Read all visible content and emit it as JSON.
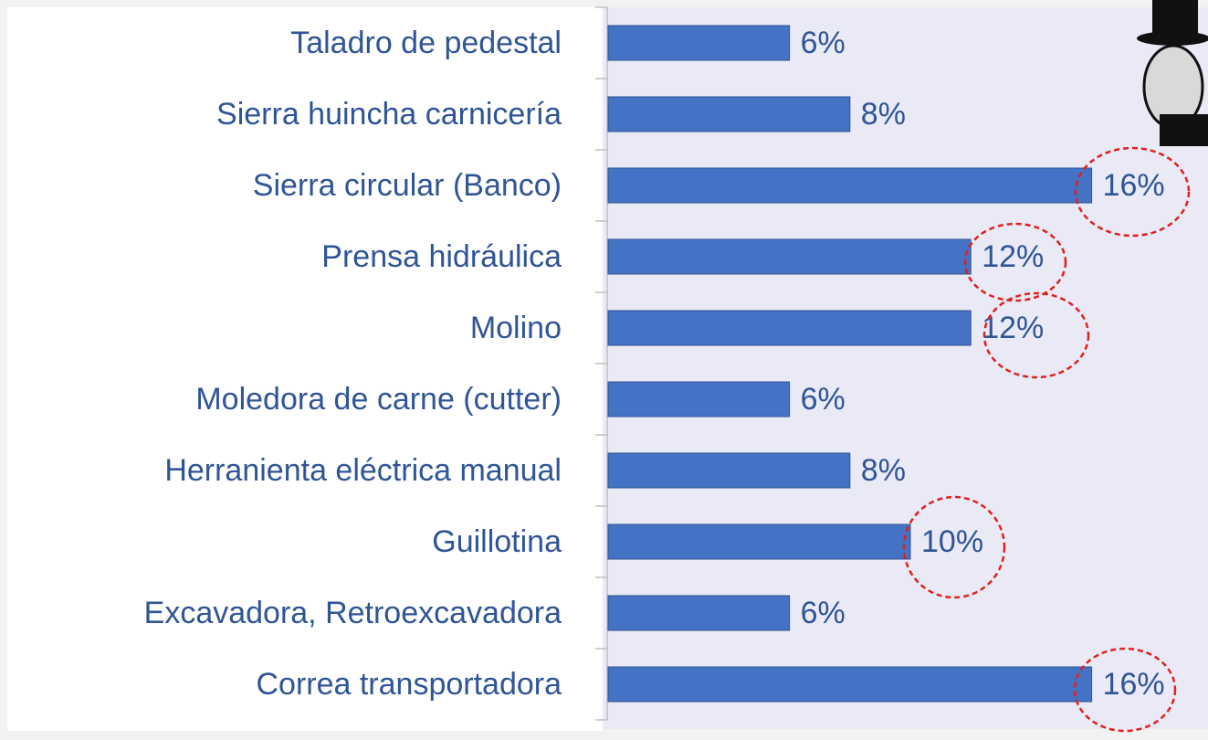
{
  "chart_data": {
    "type": "bar",
    "orientation": "horizontal",
    "categories": [
      "Taladro de pedestal",
      "Sierra huincha carnicería",
      "Sierra circular (Banco)",
      "Prensa hidráulica",
      "Molino",
      "Moledora de carne (cutter)",
      "Herranienta eléctrica manual",
      "Guillotina",
      "Excavadora, Retroexcavadora",
      "Correa transportadora"
    ],
    "values": [
      6,
      8,
      16,
      12,
      12,
      6,
      8,
      10,
      6,
      16
    ],
    "value_labels": [
      "6%",
      "8%",
      "16%",
      "12%",
      "12%",
      "6%",
      "8%",
      "10%",
      "6%",
      "16%"
    ],
    "color": "#4472c4"
  }
}
